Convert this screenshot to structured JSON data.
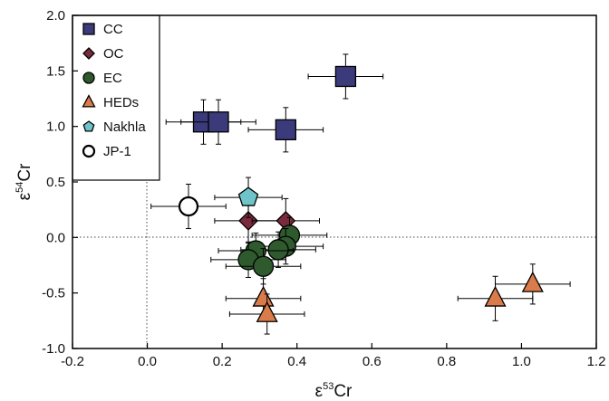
{
  "chart_data": {
    "type": "scatter",
    "xlabel": {
      "prefix": "ε",
      "sup": "53",
      "suffix": "Cr"
    },
    "ylabel": {
      "prefix": "ε",
      "sup": "54",
      "suffix": "Cr"
    },
    "xlim": [
      -0.2,
      1.2
    ],
    "ylim": [
      -1.0,
      2.0
    ],
    "xticks": [
      "-0.2",
      "0.0",
      "0.2",
      "0.4",
      "0.6",
      "0.8",
      "1.0",
      "1.2"
    ],
    "yticks": [
      "-1.0",
      "-0.5",
      "0.0",
      "0.5",
      "1.0",
      "1.5",
      "2.0"
    ],
    "xtick_values": [
      -0.2,
      0.0,
      0.2,
      0.4,
      0.6,
      0.8,
      1.0,
      1.2
    ],
    "ytick_values": [
      -1.0,
      -0.5,
      0.0,
      0.5,
      1.0,
      1.5,
      2.0
    ],
    "reference_lines": {
      "x": 0.0,
      "y": 0.0,
      "style": "dotted"
    },
    "legend_position": "top-left",
    "series": [
      {
        "name": "CC",
        "marker": "square",
        "color": "#3b3a7a",
        "points": [
          {
            "x": 0.53,
            "y": 1.45,
            "xerr": 0.1,
            "yerr": 0.2
          },
          {
            "x": 0.15,
            "y": 1.04,
            "xerr": 0.1,
            "yerr": 0.2
          },
          {
            "x": 0.19,
            "y": 1.04,
            "xerr": 0.1,
            "yerr": 0.2
          },
          {
            "x": 0.37,
            "y": 0.97,
            "xerr": 0.1,
            "yerr": 0.2
          }
        ]
      },
      {
        "name": "OC",
        "marker": "diamond",
        "color": "#7a2a3d",
        "points": [
          {
            "x": 0.27,
            "y": 0.15,
            "xerr": 0.09,
            "yerr": 0.2
          },
          {
            "x": 0.37,
            "y": 0.15,
            "xerr": 0.09,
            "yerr": 0.2
          }
        ]
      },
      {
        "name": "EC",
        "marker": "circle",
        "color": "#2e5a2e",
        "points": [
          {
            "x": 0.38,
            "y": 0.02,
            "xerr": 0.1,
            "yerr": 0.16
          },
          {
            "x": 0.37,
            "y": -0.08,
            "xerr": 0.1,
            "yerr": 0.16
          },
          {
            "x": 0.35,
            "y": -0.11,
            "xerr": 0.1,
            "yerr": 0.16
          },
          {
            "x": 0.29,
            "y": -0.12,
            "xerr": 0.1,
            "yerr": 0.16
          },
          {
            "x": 0.27,
            "y": -0.2,
            "xerr": 0.1,
            "yerr": 0.16
          },
          {
            "x": 0.31,
            "y": -0.26,
            "xerr": 0.1,
            "yerr": 0.16
          }
        ]
      },
      {
        "name": "HEDs",
        "marker": "triangle",
        "color": "#d97b4a",
        "points": [
          {
            "x": 0.31,
            "y": -0.55,
            "xerr": 0.1,
            "yerr": 0.18
          },
          {
            "x": 0.32,
            "y": -0.69,
            "xerr": 0.1,
            "yerr": 0.18
          },
          {
            "x": 0.93,
            "y": -0.55,
            "xerr": 0.1,
            "yerr": 0.2
          },
          {
            "x": 1.03,
            "y": -0.42,
            "xerr": 0.1,
            "yerr": 0.18
          }
        ]
      },
      {
        "name": "Nakhla",
        "marker": "pentagon",
        "color": "#6fc4c9",
        "points": [
          {
            "x": 0.27,
            "y": 0.36,
            "xerr": 0.09,
            "yerr": 0.18
          }
        ]
      },
      {
        "name": "JP-1",
        "marker": "open-circle",
        "color": "#ffffff",
        "points": [
          {
            "x": 0.11,
            "y": 0.28,
            "xerr": 0.1,
            "yerr": 0.2
          }
        ]
      }
    ]
  }
}
